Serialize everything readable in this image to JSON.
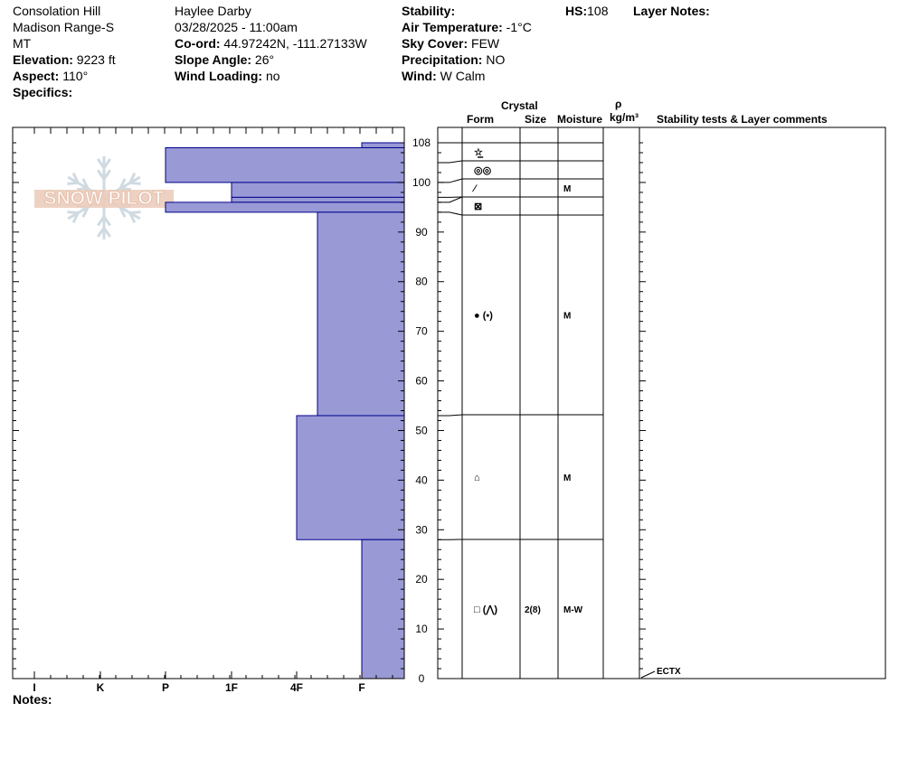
{
  "header": {
    "location": "Consolation Hill",
    "range": "Madison Range-S",
    "state": "MT",
    "elevation_label": "Elevation:",
    "elevation": " 9223 ft",
    "aspect_label": "Aspect:",
    "aspect": " 110°",
    "specifics_label": "Specifics:",
    "observer": "Haylee Darby",
    "datetime": "03/28/2025 - 11:00am",
    "coord_label": "Co-ord:",
    "coord": " 44.97242N, -111.27133W",
    "slope_label": "Slope Angle:",
    "slope": " 26°",
    "wind_loading_label": "Wind Loading:",
    "wind_loading": " no",
    "stability_label": "Stability:",
    "air_temp_label": "Air Temperature:",
    "air_temp": " -1°C",
    "sky_label": "Sky Cover:",
    "sky": " FEW",
    "precip_label": "Precipitation:",
    "precip": " NO",
    "wind_label": "Wind:",
    "wind": "  W Calm",
    "hs_label": "HS:",
    "hs": "108",
    "layer_notes_label": "Layer Notes:"
  },
  "columns": {
    "crystal": "Crystal",
    "form": "Form",
    "size": "Size",
    "moisture": "Moisture",
    "rho": "ρ",
    "density_unit": "kg/m³",
    "stability": "Stability tests & Layer comments"
  },
  "notes_label": "Notes:",
  "watermark_text": "SNOW PILOT",
  "colors": {
    "hardness_fill": "#9999d6",
    "hardness_stroke": "#00008b",
    "watermark": "#e8c4b0"
  },
  "chart_data": {
    "type": "snow_profile",
    "y_axis": {
      "min": 0,
      "max": 108,
      "ticks": [
        0,
        10,
        20,
        30,
        40,
        50,
        60,
        70,
        80,
        90,
        100,
        108
      ]
    },
    "hardness_scale": [
      "I",
      "K",
      "P",
      "1F",
      "4F",
      "F"
    ],
    "hardness_layers": [
      {
        "top": 108,
        "bottom": 107,
        "hardness": "F"
      },
      {
        "top": 107,
        "bottom": 100,
        "hardness": "P"
      },
      {
        "top": 100,
        "bottom": 97,
        "hardness": "1F"
      },
      {
        "top": 97,
        "bottom": 96,
        "hardness": "1F"
      },
      {
        "top": 96,
        "bottom": 94,
        "hardness": "P"
      },
      {
        "top": 94,
        "bottom": 53,
        "hardness": "4F-"
      },
      {
        "top": 53,
        "bottom": 28,
        "hardness": "4F"
      },
      {
        "top": 28,
        "bottom": 0,
        "hardness": "F"
      }
    ],
    "layers": [
      {
        "top": 108,
        "bottom": 104,
        "form": "☆̲",
        "size": "",
        "moisture": ""
      },
      {
        "top": 104,
        "bottom": 100,
        "form": "◎◎",
        "size": "",
        "moisture": ""
      },
      {
        "top": 100,
        "bottom": 97,
        "form": "⁄",
        "size": "",
        "moisture": "M"
      },
      {
        "top": 97,
        "bottom": 96,
        "form": "",
        "size": "",
        "moisture": ""
      },
      {
        "top": 96,
        "bottom": 94,
        "form": "⊠",
        "size": "",
        "moisture": ""
      },
      {
        "top": 94,
        "bottom": 53,
        "form": "● (▪)",
        "size": "",
        "moisture": "M"
      },
      {
        "top": 53,
        "bottom": 28,
        "form": "⌂",
        "size": "",
        "moisture": "M"
      },
      {
        "top": 28,
        "bottom": 0,
        "form": "□ (⋀)",
        "size": "2(8)",
        "moisture": "M-W"
      }
    ],
    "stability_tests": [
      {
        "depth": 0,
        "label": "ECTX"
      }
    ]
  }
}
